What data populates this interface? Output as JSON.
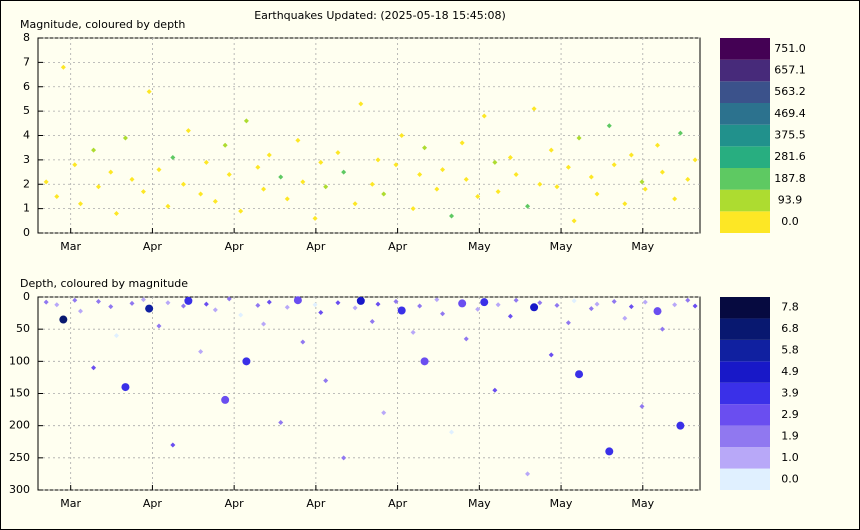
{
  "title": "Earthquakes Updated: (2025-05-18 15:45:08)",
  "chart_data": [
    {
      "type": "scatter",
      "title": "Magnitude, coloured by depth",
      "grid": true,
      "xlim": [
        0,
        81
      ],
      "xticks": [
        {
          "value": 4,
          "label": "Mar"
        },
        {
          "value": 14,
          "label": "Apr"
        },
        {
          "value": 24,
          "label": "Apr"
        },
        {
          "value": 34,
          "label": "Apr"
        },
        {
          "value": 44,
          "label": "Apr"
        },
        {
          "value": 54,
          "label": "May"
        },
        {
          "value": 64,
          "label": "May"
        },
        {
          "value": 74,
          "label": "May"
        }
      ],
      "ylim": [
        0,
        8
      ],
      "yticks": [
        0,
        1,
        2,
        3,
        4,
        5,
        6,
        7,
        8
      ],
      "x": [
        1,
        2.3,
        3.1,
        4.5,
        5.2,
        6.8,
        7.4,
        8.9,
        9.6,
        10.7,
        11.5,
        12.9,
        13.6,
        14.8,
        15.9,
        16.5,
        17.8,
        18.4,
        19.9,
        20.6,
        21.7,
        22.9,
        23.4,
        24.8,
        25.5,
        26.9,
        27.6,
        28.3,
        29.7,
        30.5,
        31.8,
        32.4,
        33.9,
        34.6,
        35.2,
        36.7,
        37.4,
        38.8,
        39.5,
        40.9,
        41.6,
        42.3,
        43.8,
        44.5,
        45.9,
        46.7,
        47.3,
        48.8,
        49.5,
        50.6,
        51.9,
        52.4,
        53.8,
        54.6,
        55.9,
        56.3,
        57.8,
        58.5,
        59.9,
        60.7,
        61.4,
        62.8,
        63.5,
        64.9,
        65.6,
        66.2,
        67.7,
        68.4,
        69.9,
        70.5,
        71.8,
        72.6,
        73.9,
        74.3,
        75.8,
        76.4,
        77.9,
        78.6,
        79.5,
        80.4
      ],
      "y": [
        2.1,
        1.5,
        6.8,
        2.8,
        1.2,
        3.4,
        1.9,
        2.5,
        0.8,
        3.9,
        2.2,
        1.7,
        5.8,
        2.6,
        1.1,
        3.1,
        2.0,
        4.2,
        1.6,
        2.9,
        1.3,
        3.6,
        2.4,
        0.9,
        4.6,
        2.7,
        1.8,
        3.2,
        2.3,
        1.4,
        3.8,
        2.1,
        0.6,
        2.9,
        1.9,
        3.3,
        2.5,
        1.2,
        5.3,
        2.0,
        3.0,
        1.6,
        2.8,
        4.0,
        1.0,
        2.4,
        3.5,
        1.8,
        2.6,
        0.7,
        3.7,
        2.2,
        1.5,
        4.8,
        2.9,
        1.7,
        3.1,
        2.4,
        1.1,
        5.1,
        2.0,
        3.4,
        1.9,
        2.7,
        0.5,
        3.9,
        2.3,
        1.6,
        4.4,
        2.8,
        1.2,
        3.2,
        2.1,
        1.8,
        3.6,
        2.5,
        1.4,
        4.1,
        2.2,
        3.0
      ],
      "c": [
        8,
        12,
        35,
        5,
        22,
        110,
        7,
        15,
        60,
        140,
        10,
        4,
        18,
        45,
        9,
        230,
        14,
        6,
        85,
        11,
        20,
        160,
        3,
        28,
        100,
        13,
        42,
        8,
        195,
        16,
        5,
        70,
        12,
        24,
        130,
        9,
        250,
        17,
        6,
        38,
        11,
        180,
        7,
        21,
        55,
        14,
        100,
        4,
        26,
        210,
        10,
        65,
        19,
        8,
        145,
        12,
        30,
        5,
        275,
        16,
        9,
        90,
        13,
        40,
        6,
        120,
        18,
        11,
        240,
        7,
        33,
        15,
        170,
        8,
        22,
        50,
        12,
        200,
        5,
        14
      ],
      "colorbar": {
        "ticks": [
          {
            "value": 0,
            "label": "0.0"
          },
          {
            "value": 93.9,
            "label": "93.9"
          },
          {
            "value": 187.8,
            "label": "187.8"
          },
          {
            "value": 281.6,
            "label": "281.6"
          },
          {
            "value": 375.5,
            "label": "375.5"
          },
          {
            "value": 469.4,
            "label": "469.4"
          },
          {
            "value": 563.2,
            "label": "563.2"
          },
          {
            "value": 657.1,
            "label": "657.1"
          },
          {
            "value": 751,
            "label": "751.0"
          }
        ],
        "colors": [
          "#fde725",
          "#addc30",
          "#5ec962",
          "#28ae80",
          "#21918c",
          "#2c728e",
          "#3b528b",
          "#472a7a",
          "#440154"
        ]
      }
    },
    {
      "type": "scatter",
      "title": "Depth, coloured by magnitude",
      "grid": true,
      "xlim": [
        0,
        81
      ],
      "xticks": [
        {
          "value": 4,
          "label": "Mar"
        },
        {
          "value": 14,
          "label": "Apr"
        },
        {
          "value": 24,
          "label": "Apr"
        },
        {
          "value": 34,
          "label": "Apr"
        },
        {
          "value": 44,
          "label": "Apr"
        },
        {
          "value": 54,
          "label": "May"
        },
        {
          "value": 64,
          "label": "May"
        },
        {
          "value": 74,
          "label": "May"
        }
      ],
      "ylim": [
        300,
        0
      ],
      "yticks": [
        0,
        50,
        100,
        150,
        200,
        250,
        300
      ],
      "x": [
        1,
        2.3,
        3.1,
        4.5,
        5.2,
        6.8,
        7.4,
        8.9,
        9.6,
        10.7,
        11.5,
        12.9,
        13.6,
        14.8,
        15.9,
        16.5,
        17.8,
        18.4,
        19.9,
        20.6,
        21.7,
        22.9,
        23.4,
        24.8,
        25.5,
        26.9,
        27.6,
        28.3,
        29.7,
        30.5,
        31.8,
        32.4,
        33.9,
        34.6,
        35.2,
        36.7,
        37.4,
        38.8,
        39.5,
        40.9,
        41.6,
        42.3,
        43.8,
        44.5,
        45.9,
        46.7,
        47.3,
        48.8,
        49.5,
        50.6,
        51.9,
        52.4,
        53.8,
        54.6,
        55.9,
        56.3,
        57.8,
        58.5,
        59.9,
        60.7,
        61.4,
        62.8,
        63.5,
        64.9,
        65.6,
        66.2,
        67.7,
        68.4,
        69.9,
        70.5,
        71.8,
        72.6,
        73.9,
        74.3,
        75.8,
        76.4,
        77.9,
        78.6,
        79.5,
        80.4
      ],
      "y": [
        8,
        12,
        35,
        5,
        22,
        110,
        7,
        15,
        60,
        140,
        10,
        4,
        18,
        45,
        9,
        230,
        14,
        6,
        85,
        11,
        20,
        160,
        3,
        28,
        100,
        13,
        42,
        8,
        195,
        16,
        5,
        70,
        12,
        24,
        130,
        9,
        250,
        17,
        6,
        38,
        11,
        180,
        7,
        21,
        55,
        14,
        100,
        4,
        26,
        210,
        10,
        65,
        19,
        8,
        145,
        12,
        30,
        5,
        275,
        16,
        9,
        90,
        13,
        40,
        6,
        120,
        18,
        11,
        240,
        7,
        33,
        15,
        170,
        8,
        22,
        50,
        12,
        200,
        5,
        14
      ],
      "c": [
        2.1,
        1.5,
        6.8,
        2.8,
        1.2,
        3.4,
        1.9,
        2.5,
        0.8,
        3.9,
        2.2,
        1.7,
        5.8,
        2.6,
        1.1,
        3.1,
        2.0,
        4.2,
        1.6,
        2.9,
        1.3,
        3.6,
        2.4,
        0.9,
        4.6,
        2.7,
        1.8,
        3.2,
        2.3,
        1.4,
        3.8,
        2.1,
        0.6,
        2.9,
        1.9,
        3.3,
        2.5,
        1.2,
        5.3,
        2.0,
        3.0,
        1.6,
        2.8,
        4.0,
        1.0,
        2.4,
        3.5,
        1.8,
        2.6,
        0.7,
        3.7,
        2.2,
        1.5,
        4.8,
        2.9,
        1.7,
        3.1,
        2.4,
        1.1,
        5.1,
        2.0,
        3.4,
        1.9,
        2.7,
        0.5,
        3.9,
        2.3,
        1.6,
        4.4,
        2.8,
        1.2,
        3.2,
        2.1,
        1.8,
        3.6,
        2.5,
        1.4,
        4.1,
        2.2,
        3.0
      ],
      "colorbar": {
        "ticks": [
          {
            "value": 0,
            "label": "0.0"
          },
          {
            "value": 1,
            "label": "1.0"
          },
          {
            "value": 1.9,
            "label": "1.9"
          },
          {
            "value": 2.9,
            "label": "2.9"
          },
          {
            "value": 3.9,
            "label": "3.9"
          },
          {
            "value": 4.9,
            "label": "4.9"
          },
          {
            "value": 5.8,
            "label": "5.8"
          },
          {
            "value": 6.8,
            "label": "6.8"
          },
          {
            "value": 7.8,
            "label": "7.8"
          }
        ],
        "colors": [
          "#e0f0ff",
          "#b8a8f8",
          "#9078f0",
          "#6a4ef0",
          "#3a30e8",
          "#1818c8",
          "#1020a0",
          "#081870",
          "#060a40"
        ]
      }
    }
  ]
}
